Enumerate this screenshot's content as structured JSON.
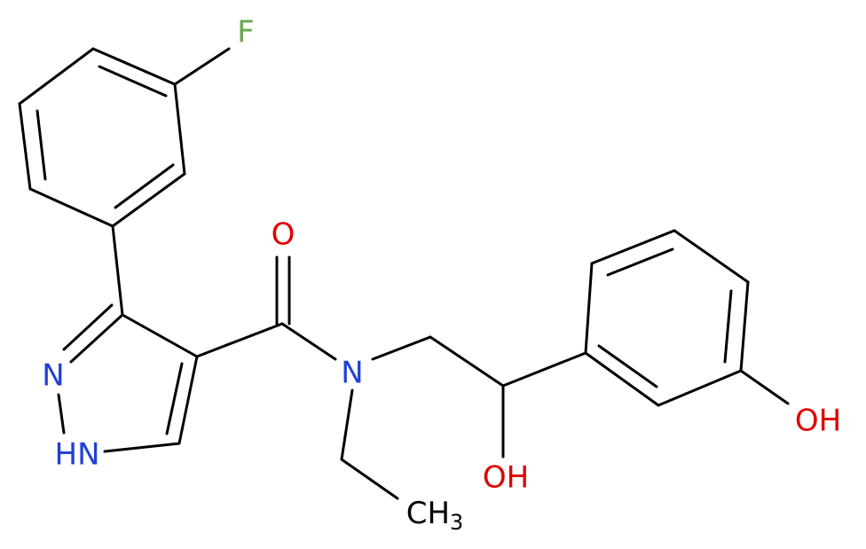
{
  "atoms": [
    {
      "label": "F"
    },
    {
      "label": "O"
    },
    {
      "label": "N"
    },
    {
      "label": "HN"
    },
    {
      "label": "N"
    },
    {
      "label": "OH"
    },
    {
      "label": "OH"
    },
    {
      "label": "CH",
      "subscript": "3"
    }
  ]
}
